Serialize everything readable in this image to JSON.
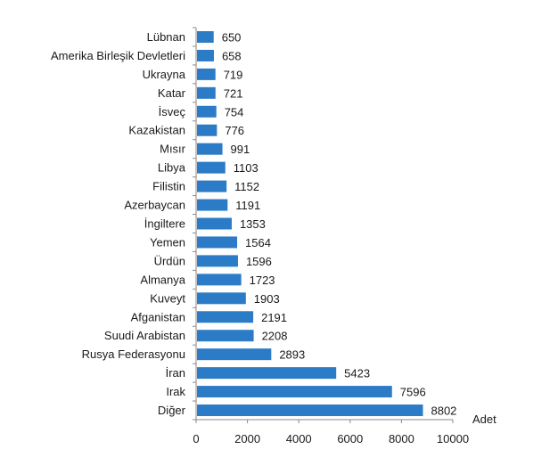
{
  "chart_data": {
    "type": "bar",
    "orientation": "horizontal",
    "title": "",
    "xlabel": "Adet",
    "ylabel": "",
    "xlim": [
      0,
      10000
    ],
    "xticks": [
      0,
      2000,
      4000,
      6000,
      8000,
      10000
    ],
    "grid": false,
    "bar_color": "#2b7bc6",
    "categories": [
      "Lübnan",
      "Amerika Birleşik Devletleri",
      "Ukrayna",
      "Katar",
      "İsveç",
      "Kazakistan",
      "Mısır",
      "Libya",
      "Filistin",
      "Azerbaycan",
      "İngiltere",
      "Yemen",
      "Ürdün",
      "Almanya",
      "Kuveyt",
      "Afganistan",
      "Suudi Arabistan",
      "Rusya Federasyonu",
      "İran",
      "Irak",
      "Diğer"
    ],
    "values": [
      650,
      658,
      719,
      721,
      754,
      776,
      991,
      1103,
      1152,
      1191,
      1353,
      1564,
      1596,
      1723,
      1903,
      2191,
      2208,
      2893,
      5423,
      7596,
      8802
    ]
  }
}
